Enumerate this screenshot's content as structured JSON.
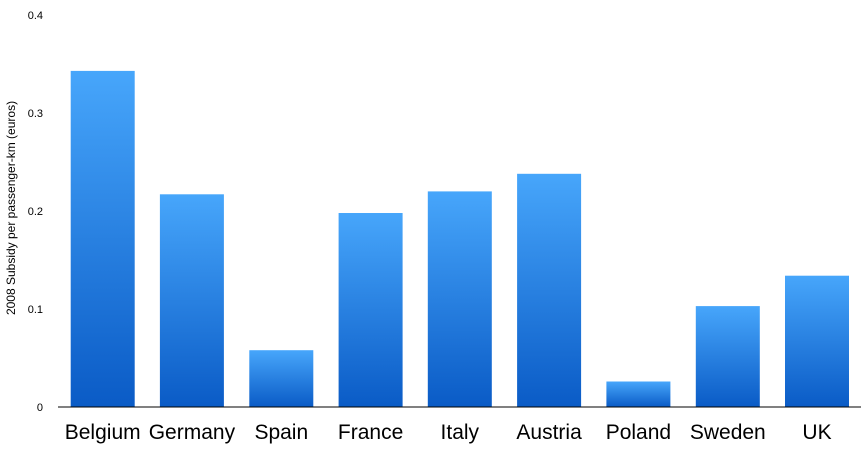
{
  "chart_data": {
    "type": "bar",
    "title": "",
    "xlabel": "",
    "ylabel": "2008 Subsidy per passenger-km (euros)",
    "ylim": [
      0,
      0.4
    ],
    "yticks": [
      "0",
      "0.1",
      "0.2",
      "0.3",
      "0.4"
    ],
    "ytick_values": [
      0,
      0.1,
      0.2,
      0.3,
      0.4
    ],
    "grid": false,
    "legend": "none",
    "categories": [
      "Belgium",
      "Germany",
      "Spain",
      "France",
      "Italy",
      "Austria",
      "Poland",
      "Sweden",
      "UK"
    ],
    "values": [
      0.343,
      0.217,
      0.058,
      0.198,
      0.22,
      0.238,
      0.026,
      0.103,
      0.134
    ],
    "colors": {
      "bar_top": "#47a6fb",
      "bar_bottom": "#0a5bc6",
      "axis": "#000000"
    }
  }
}
